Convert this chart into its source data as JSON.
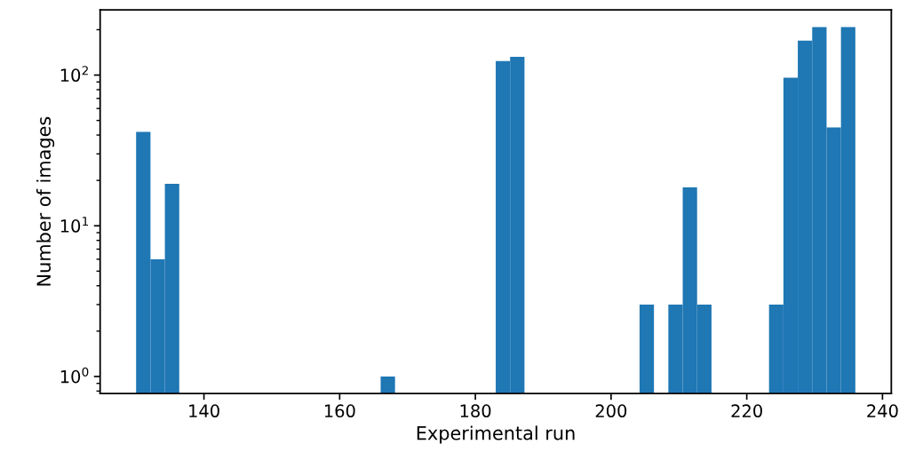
{
  "chart_data": {
    "type": "histogram",
    "xlabel": "Experimental run",
    "ylabel": "Number of images",
    "bins": [
      130,
      132.12,
      134.24,
      136.36,
      138.48,
      140.6,
      142.72,
      144.84,
      146.96,
      149.08,
      151.2,
      153.32,
      155.44,
      157.56,
      159.68,
      161.8,
      163.92,
      166.04,
      168.16,
      170.28,
      172.4,
      174.52,
      176.64,
      178.76,
      180.88,
      183,
      185.12,
      187.24,
      189.36,
      191.48,
      193.6,
      195.72,
      197.84,
      199.96,
      202.08,
      204.2,
      206.32,
      208.44,
      210.56,
      212.68,
      214.8,
      216.92,
      219.04,
      221.16,
      223.28,
      225.4,
      227.52,
      229.64,
      231.76,
      233.88,
      236
    ],
    "values": [
      42,
      6,
      19,
      null,
      null,
      null,
      null,
      null,
      null,
      null,
      null,
      null,
      null,
      null,
      null,
      null,
      null,
      1,
      null,
      null,
      null,
      null,
      null,
      null,
      null,
      124,
      132,
      null,
      null,
      null,
      null,
      null,
      null,
      null,
      null,
      3,
      null,
      3,
      18,
      3,
      null,
      null,
      null,
      null,
      3,
      96,
      169,
      208,
      45,
      208
    ],
    "color": "#1f77b4",
    "log": "y",
    "xlim": [
      124.7,
      241.3
    ],
    "xticks": [
      140,
      160,
      180,
      200,
      220,
      240
    ],
    "ylim": [
      0.77,
      271
    ],
    "yticks": [
      {
        "value": 1,
        "label": "10$^{0}$"
      },
      {
        "value": 10,
        "label": "10$^{1}$"
      },
      {
        "value": 100,
        "label": "10$^{2}$"
      }
    ],
    "grid": false,
    "legend": false
  }
}
